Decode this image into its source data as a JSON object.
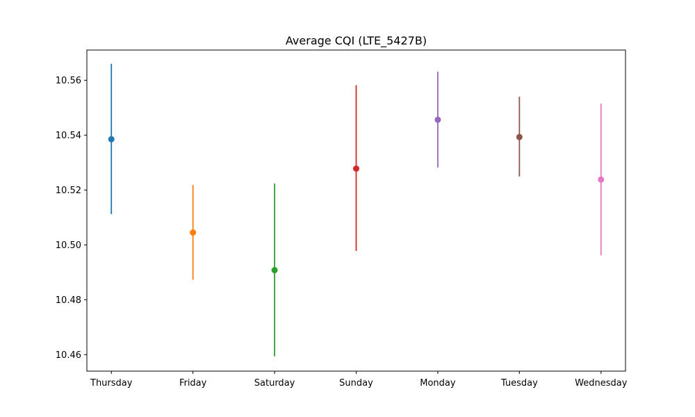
{
  "chart_data": {
    "type": "errorbar",
    "title": "Average CQI (LTE_5427B)",
    "xlabel": "",
    "ylabel": "",
    "ylim": [
      10.454,
      10.571
    ],
    "yticks": [
      10.46,
      10.48,
      10.5,
      10.52,
      10.54,
      10.56
    ],
    "ytick_labels": [
      "10.46",
      "10.48",
      "10.50",
      "10.52",
      "10.54",
      "10.56"
    ],
    "grid": false,
    "categories": [
      "Thursday",
      "Friday",
      "Saturday",
      "Sunday",
      "Monday",
      "Tuesday",
      "Wednesday"
    ],
    "points": [
      {
        "category": "Thursday",
        "mean": 10.5385,
        "low": 10.5112,
        "high": 10.566,
        "color": "#1f77b4"
      },
      {
        "category": "Friday",
        "mean": 10.5045,
        "low": 10.4873,
        "high": 10.5218,
        "color": "#ff7f0e"
      },
      {
        "category": "Saturday",
        "mean": 10.4908,
        "low": 10.4594,
        "high": 10.5224,
        "color": "#2ca02c"
      },
      {
        "category": "Sunday",
        "mean": 10.5278,
        "low": 10.4978,
        "high": 10.5582,
        "color": "#d62728"
      },
      {
        "category": "Monday",
        "mean": 10.5456,
        "low": 10.5282,
        "high": 10.5631,
        "color": "#9467bd"
      },
      {
        "category": "Tuesday",
        "mean": 10.5393,
        "low": 10.5249,
        "high": 10.554,
        "color": "#8c564b"
      },
      {
        "category": "Wednesday",
        "mean": 10.5238,
        "low": 10.4962,
        "high": 10.5515,
        "color": "#e377c2"
      }
    ]
  }
}
